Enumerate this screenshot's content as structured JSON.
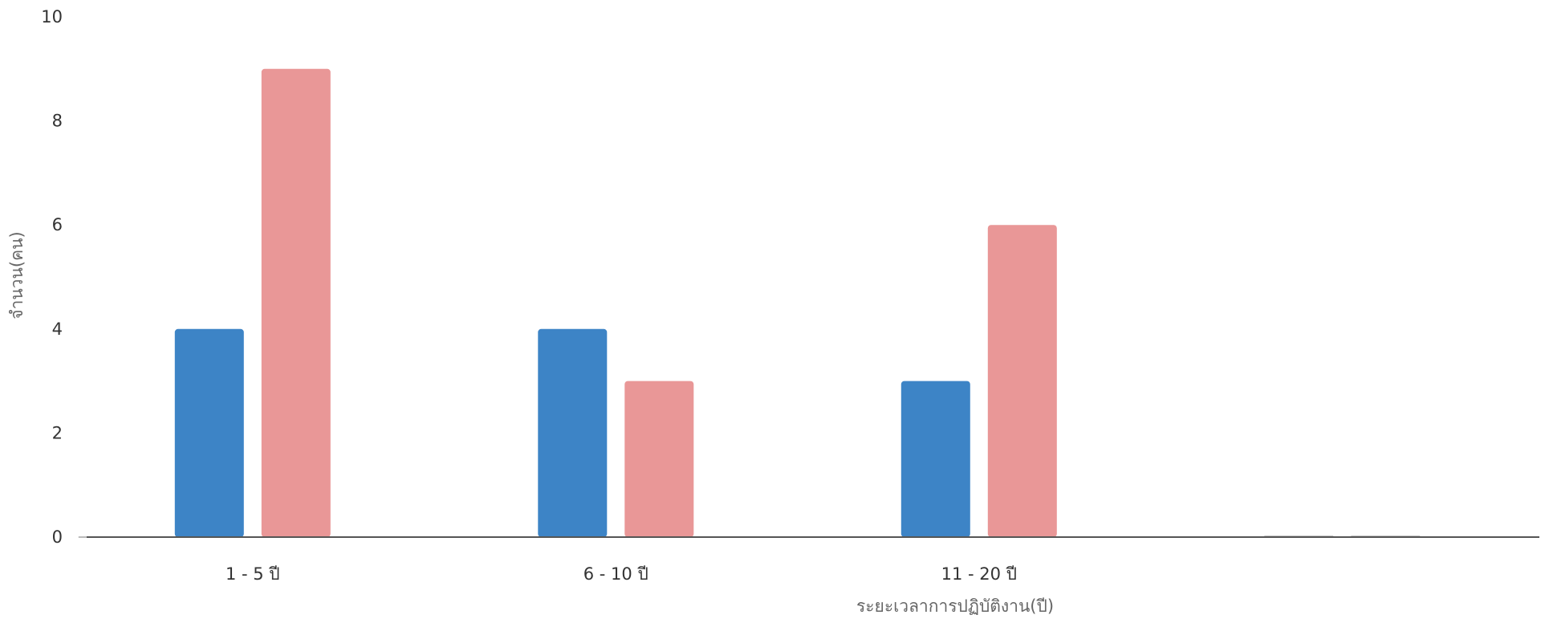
{
  "chart_data": {
    "type": "bar",
    "categories": [
      "1 - 5 ปี",
      "6 - 10 ปี",
      "11 - 20 ปี",
      ""
    ],
    "series": [
      {
        "values": [
          4,
          4,
          3,
          0
        ],
        "color": "#3d84c6"
      },
      {
        "values": [
          9,
          3,
          6,
          0
        ],
        "color": "#e99797"
      }
    ],
    "xlabel": "ระยะเวลาการปฏิบัติงาน(ปี)",
    "ylabel": "จำนวน(คน)",
    "ylim": [
      0,
      10
    ],
    "yticks": [
      0,
      2,
      4,
      6,
      8,
      10
    ],
    "grid": false,
    "legend": "none"
  }
}
